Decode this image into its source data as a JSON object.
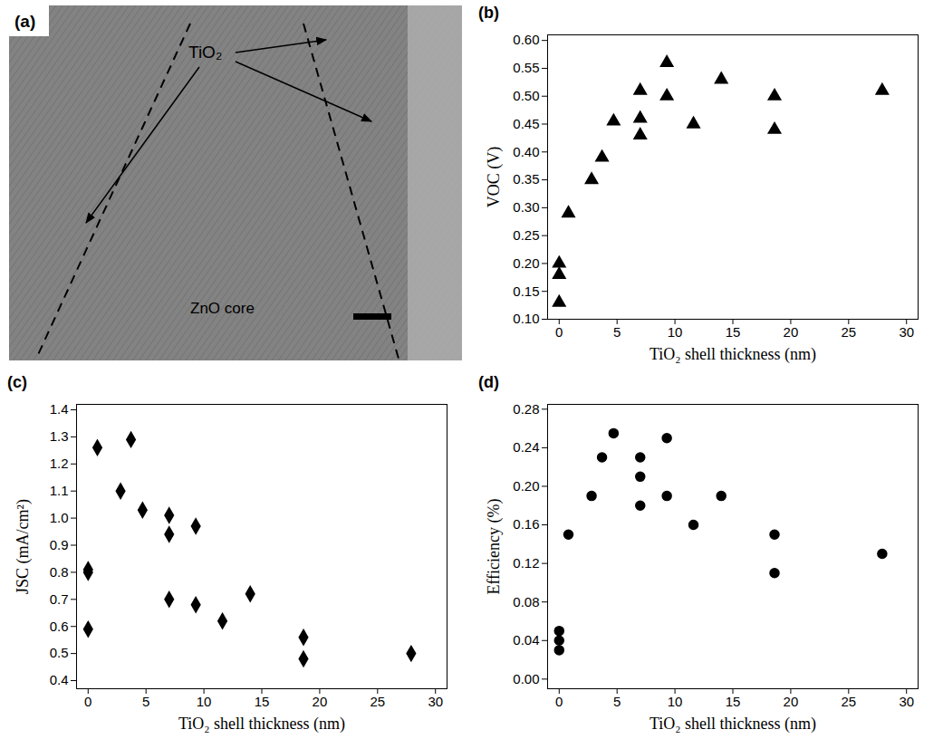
{
  "chart_data": [
    {
      "type": "image",
      "title": "(a)",
      "annotations": [
        "TiO₂",
        "ZnO core"
      ]
    },
    {
      "type": "scatter",
      "title": "(b)",
      "x_label": "TiO₂ shell thickness (nm)",
      "y_label": "VOC (V)",
      "x": [
        0,
        0,
        0,
        0.8,
        2.8,
        3.7,
        4.7,
        7,
        7,
        7,
        9.3,
        9.3,
        11.6,
        14,
        18.6,
        18.6,
        27.9
      ],
      "values": [
        0.2,
        0.18,
        0.13,
        0.29,
        0.35,
        0.39,
        0.455,
        0.51,
        0.46,
        0.43,
        0.56,
        0.5,
        0.45,
        0.53,
        0.5,
        0.44,
        0.51
      ],
      "marker": "triangle",
      "color": "#000000",
      "xlim": [
        -1,
        31
      ],
      "xticks": [
        0,
        5,
        10,
        15,
        20,
        25,
        30
      ],
      "ylim": [
        0.1,
        0.61
      ],
      "yticks": [
        {
          "value": 0.1,
          "label": "0.10"
        },
        0.15,
        {
          "value": 0.2,
          "label": "0.20"
        },
        0.25,
        {
          "value": 0.3,
          "label": "0.30"
        },
        0.35,
        {
          "value": 0.4,
          "label": "0.40"
        },
        0.45,
        {
          "value": 0.5,
          "label": "0.50"
        },
        0.55,
        {
          "value": 0.6,
          "label": "0.60"
        }
      ]
    },
    {
      "type": "scatter",
      "title": "(c)",
      "x_label": "TiO₂ shell thickness (nm)",
      "y_label": "JSC (mA/cm²)",
      "x": [
        0,
        0,
        0,
        0.8,
        2.8,
        3.7,
        4.7,
        7,
        7,
        7,
        9.3,
        9.3,
        11.6,
        14,
        18.6,
        18.6,
        27.9
      ],
      "values": [
        0.81,
        0.8,
        0.59,
        1.26,
        1.1,
        1.29,
        1.03,
        1.01,
        0.94,
        0.7,
        0.97,
        0.68,
        0.62,
        0.72,
        0.56,
        0.48,
        0.5
      ],
      "marker": "diamond",
      "color": "#000000",
      "xlim": [
        -1,
        31
      ],
      "xticks": [
        0,
        5,
        10,
        15,
        20,
        25,
        30
      ],
      "ylim": [
        0.37,
        1.42
      ],
      "yticks": [
        0.4,
        0.5,
        0.6,
        0.7,
        0.8,
        0.9,
        {
          "value": 1,
          "label": "1.0"
        },
        1.1,
        1.2,
        1.3,
        1.4
      ]
    },
    {
      "type": "scatter",
      "title": "(d)",
      "x_label": "TiO₂ shell thickness (nm)",
      "y_label": "Efficiency (%)",
      "x": [
        0,
        0,
        0,
        0.8,
        2.8,
        3.7,
        4.7,
        7,
        7,
        7,
        9.3,
        9.3,
        11.6,
        14,
        18.6,
        18.6,
        27.9
      ],
      "values": [
        0.05,
        0.04,
        0.03,
        0.15,
        0.19,
        0.23,
        0.255,
        0.23,
        0.21,
        0.18,
        0.25,
        0.19,
        0.16,
        0.19,
        0.15,
        0.11,
        0.13
      ],
      "marker": "circle",
      "color": "#000000",
      "xlim": [
        -1,
        31
      ],
      "xticks": [
        0,
        5,
        10,
        15,
        20,
        25,
        30
      ],
      "ylim": [
        -0.01,
        0.285
      ],
      "yticks": [
        {
          "value": 0,
          "label": "0.00"
        },
        0.04,
        0.08,
        0.12,
        0.16,
        {
          "value": 0.2,
          "label": "0.20"
        },
        0.24,
        0.28
      ]
    }
  ]
}
